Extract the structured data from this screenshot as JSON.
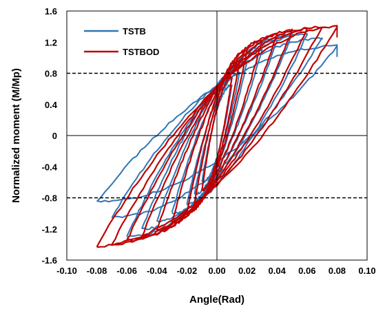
{
  "chart_data": {
    "type": "line",
    "title": "",
    "xlabel": "Angle(Rad)",
    "ylabel": "Normalized moment (M/Mp)",
    "xlim": [
      -0.1,
      0.1
    ],
    "ylim": [
      -1.6,
      1.6
    ],
    "x_ticks": [
      -0.1,
      -0.08,
      -0.06,
      -0.04,
      -0.02,
      0.0,
      0.02,
      0.04,
      0.06,
      0.08,
      0.1
    ],
    "x_tick_labels": [
      "-0.10",
      "-0.08",
      "-0.06",
      "-0.04",
      "-0.02",
      "0.00",
      "0.02",
      "0.04",
      "0.06",
      "0.08",
      "0.10"
    ],
    "y_ticks": [
      -1.6,
      -1.2,
      -0.8,
      -0.4,
      0,
      0.4,
      0.8,
      1.2,
      1.6
    ],
    "y_tick_labels": [
      "-1.6",
      "-1.2",
      "-0.8",
      "-0.4",
      "0",
      "0.4",
      "0.8",
      "1.2",
      "1.6"
    ],
    "grid": false,
    "legend_position": "top-left",
    "reference_lines": [
      {
        "orientation": "horizontal",
        "y": 0.8,
        "style": "dashed",
        "color": "#000000"
      },
      {
        "orientation": "horizontal",
        "y": -0.8,
        "style": "dashed",
        "color": "#000000"
      }
    ],
    "series": [
      {
        "name": "TSTB",
        "color": "#2E75B6",
        "cycles": [
          {
            "amplitude": 0.01,
            "peak_pos": 0.65,
            "peak_neg": -0.6
          },
          {
            "amplitude": 0.015,
            "peak_pos": 0.8,
            "peak_neg": -0.75
          },
          {
            "amplitude": 0.02,
            "peak_pos": 0.95,
            "peak_neg": -0.88
          },
          {
            "amplitude": 0.03,
            "peak_pos": 1.1,
            "peak_neg": -1.0
          },
          {
            "amplitude": 0.04,
            "peak_pos": 1.22,
            "peak_neg": -1.1
          },
          {
            "amplitude": 0.05,
            "peak_pos": 1.3,
            "peak_neg": -1.2
          },
          {
            "amplitude": 0.06,
            "peak_pos": 1.3,
            "peak_neg": -1.3
          },
          {
            "amplitude": 0.07,
            "peak_pos": 1.25,
            "peak_neg": -1.05
          },
          {
            "amplitude": 0.08,
            "peak_pos": 1.15,
            "peak_neg": -0.85
          }
        ]
      },
      {
        "name": "TSTBOD",
        "color": "#C00000",
        "cycles": [
          {
            "amplitude": 0.01,
            "peak_pos": 0.75,
            "peak_neg": -0.7
          },
          {
            "amplitude": 0.015,
            "peak_pos": 0.95,
            "peak_neg": -0.88
          },
          {
            "amplitude": 0.02,
            "peak_pos": 1.1,
            "peak_neg": -1.0
          },
          {
            "amplitude": 0.03,
            "peak_pos": 1.22,
            "peak_neg": -1.12
          },
          {
            "amplitude": 0.04,
            "peak_pos": 1.3,
            "peak_neg": -1.22
          },
          {
            "amplitude": 0.05,
            "peak_pos": 1.35,
            "peak_neg": -1.3
          },
          {
            "amplitude": 0.06,
            "peak_pos": 1.37,
            "peak_neg": -1.35
          },
          {
            "amplitude": 0.07,
            "peak_pos": 1.4,
            "peak_neg": -1.4
          },
          {
            "amplitude": 0.08,
            "peak_pos": 1.4,
            "peak_neg": -1.42
          }
        ]
      }
    ]
  }
}
